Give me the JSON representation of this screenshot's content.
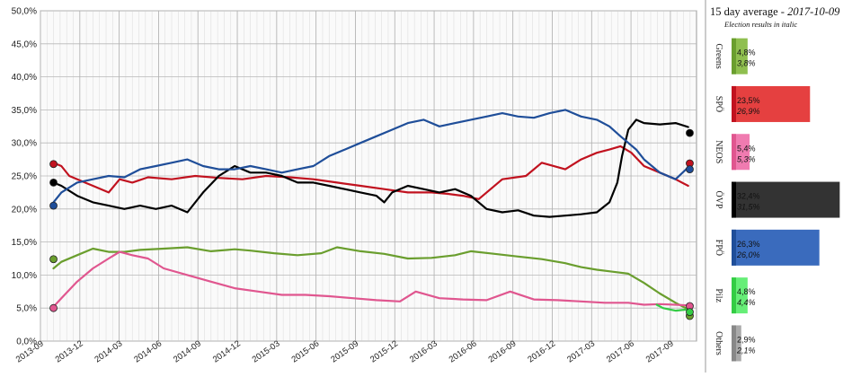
{
  "chart_data": {
    "type": "line",
    "title": "15 day average - 2017-10-09",
    "title_main": "15 day average - ",
    "title_date": "2017-10-09",
    "subtitle": "Election results in italic",
    "y_ticks": [
      "0,0%",
      "5,0%",
      "10,0%",
      "15,0%",
      "20,0%",
      "25,0%",
      "30,0%",
      "35,0%",
      "40,0%",
      "45,0%",
      "50,0%"
    ],
    "ylim": [
      0,
      50
    ],
    "x_ticks": [
      "2013-09",
      "2013-12",
      "2014-03",
      "2014-06",
      "2014-09",
      "2014-12",
      "2015-03",
      "2015-06",
      "2015-09",
      "2015-12",
      "2016-03",
      "2016-06",
      "2016-09",
      "2016-12",
      "2017-03",
      "2017-06",
      "2017-09"
    ],
    "x_tick_values": [
      2013.667,
      2013.917,
      2014.167,
      2014.417,
      2014.667,
      2014.917,
      2015.167,
      2015.417,
      2015.667,
      2015.917,
      2016.167,
      2016.417,
      2016.667,
      2016.917,
      2017.167,
      2017.417,
      2017.667
    ],
    "xlim": [
      2013.667,
      2017.833
    ],
    "grid": true,
    "series": [
      {
        "name": "Greens",
        "color": "#6a9e2e",
        "x": [
          2013.75,
          2013.8,
          2013.9,
          2014.0,
          2014.1,
          2014.2,
          2014.3,
          2014.45,
          2014.6,
          2014.75,
          2014.9,
          2015.0,
          2015.15,
          2015.3,
          2015.45,
          2015.55,
          2015.7,
          2015.85,
          2016.0,
          2016.15,
          2016.3,
          2016.4,
          2016.55,
          2016.7,
          2016.85,
          2017.0,
          2017.1,
          2017.2,
          2017.3,
          2017.4,
          2017.5,
          2017.6,
          2017.7,
          2017.78
        ],
        "y": [
          11.0,
          12.0,
          13.0,
          14.0,
          13.5,
          13.5,
          13.8,
          14.0,
          14.2,
          13.6,
          13.9,
          13.7,
          13.3,
          13.0,
          13.3,
          14.2,
          13.6,
          13.2,
          12.5,
          12.6,
          13.0,
          13.6,
          13.2,
          12.8,
          12.4,
          11.8,
          11.2,
          10.8,
          10.5,
          10.2,
          8.8,
          7.2,
          5.8,
          4.8
        ]
      },
      {
        "name": "SPÖ",
        "color": "#c1121f",
        "x": [
          2013.75,
          2013.8,
          2013.85,
          2013.95,
          2014.0,
          2014.1,
          2014.17,
          2014.25,
          2014.35,
          2014.5,
          2014.65,
          2014.8,
          2014.95,
          2015.1,
          2015.25,
          2015.4,
          2015.55,
          2015.7,
          2015.85,
          2016.0,
          2016.15,
          2016.25,
          2016.35,
          2016.45,
          2016.6,
          2016.75,
          2016.85,
          2017.0,
          2017.1,
          2017.2,
          2017.28,
          2017.35,
          2017.42,
          2017.5,
          2017.6,
          2017.7,
          2017.78
        ],
        "y": [
          27.0,
          26.5,
          25.0,
          24.0,
          23.5,
          22.5,
          24.5,
          24.0,
          24.8,
          24.5,
          25.0,
          24.7,
          24.5,
          25.0,
          24.8,
          24.5,
          24.0,
          23.5,
          23.0,
          22.5,
          22.5,
          22.3,
          22.0,
          21.5,
          24.5,
          25.0,
          27.0,
          26.0,
          27.5,
          28.5,
          29.0,
          29.5,
          28.5,
          26.5,
          25.5,
          24.5,
          23.5
        ]
      },
      {
        "name": "NEOS",
        "color": "#e0568f",
        "x": [
          2013.75,
          2013.8,
          2013.9,
          2014.0,
          2014.1,
          2014.17,
          2014.25,
          2014.35,
          2014.45,
          2014.6,
          2014.75,
          2014.9,
          2015.05,
          2015.2,
          2015.35,
          2015.5,
          2015.65,
          2015.8,
          2015.95,
          2016.05,
          2016.2,
          2016.35,
          2016.5,
          2016.65,
          2016.8,
          2016.95,
          2017.1,
          2017.25,
          2017.4,
          2017.5,
          2017.6,
          2017.7,
          2017.78
        ],
        "y": [
          5.2,
          6.5,
          9.0,
          11.0,
          12.5,
          13.5,
          13.0,
          12.5,
          11.0,
          10.0,
          9.0,
          8.0,
          7.5,
          7.0,
          7.0,
          6.8,
          6.5,
          6.2,
          6.0,
          7.5,
          6.5,
          6.3,
          6.2,
          7.5,
          6.3,
          6.2,
          6.0,
          5.8,
          5.8,
          5.5,
          5.6,
          5.5,
          5.4
        ]
      },
      {
        "name": "ÖVP",
        "color": "#000000",
        "x": [
          2013.75,
          2013.8,
          2013.9,
          2014.0,
          2014.1,
          2014.2,
          2014.3,
          2014.4,
          2014.5,
          2014.6,
          2014.7,
          2014.8,
          2014.9,
          2015.0,
          2015.1,
          2015.2,
          2015.3,
          2015.4,
          2015.5,
          2015.6,
          2015.7,
          2015.8,
          2015.85,
          2015.9,
          2016.0,
          2016.1,
          2016.2,
          2016.3,
          2016.4,
          2016.5,
          2016.6,
          2016.7,
          2016.8,
          2016.9,
          2017.0,
          2017.1,
          2017.2,
          2017.28,
          2017.33,
          2017.36,
          2017.4,
          2017.45,
          2017.5,
          2017.6,
          2017.7,
          2017.78
        ],
        "y": [
          24.0,
          23.5,
          22.0,
          21.0,
          20.5,
          20.0,
          20.5,
          20.0,
          20.5,
          19.5,
          22.5,
          25.0,
          26.5,
          25.5,
          25.5,
          25.0,
          24.0,
          24.0,
          23.5,
          23.0,
          22.5,
          22.0,
          21.0,
          22.5,
          23.5,
          23.0,
          22.5,
          23.0,
          22.0,
          20.0,
          19.5,
          19.8,
          19.0,
          18.8,
          19.0,
          19.2,
          19.5,
          21.0,
          24.0,
          28.0,
          32.0,
          33.5,
          33.0,
          32.8,
          33.0,
          32.4
        ]
      },
      {
        "name": "FPÖ",
        "color": "#1f4e99",
        "x": [
          2013.75,
          2013.8,
          2013.9,
          2014.0,
          2014.1,
          2014.2,
          2014.3,
          2014.4,
          2014.5,
          2014.6,
          2014.7,
          2014.8,
          2014.9,
          2015.0,
          2015.1,
          2015.2,
          2015.3,
          2015.4,
          2015.5,
          2015.6,
          2015.7,
          2015.8,
          2015.9,
          2016.0,
          2016.1,
          2016.2,
          2016.3,
          2016.4,
          2016.5,
          2016.6,
          2016.7,
          2016.8,
          2016.9,
          2017.0,
          2017.1,
          2017.2,
          2017.28,
          2017.35,
          2017.4,
          2017.45,
          2017.5,
          2017.6,
          2017.7,
          2017.78
        ],
        "y": [
          21.0,
          22.5,
          24.0,
          24.5,
          25.0,
          24.8,
          26.0,
          26.5,
          27.0,
          27.5,
          26.5,
          26.0,
          26.0,
          26.5,
          26.0,
          25.5,
          26.0,
          26.5,
          28.0,
          29.0,
          30.0,
          31.0,
          32.0,
          33.0,
          33.5,
          32.5,
          33.0,
          33.5,
          34.0,
          34.5,
          34.0,
          33.8,
          34.5,
          35.0,
          34.0,
          33.5,
          32.5,
          31.0,
          30.0,
          29.0,
          27.5,
          25.5,
          24.5,
          26.3
        ]
      },
      {
        "name": "Pilz",
        "color": "#33cc44",
        "x": [
          2017.58,
          2017.62,
          2017.66,
          2017.7,
          2017.74,
          2017.78
        ],
        "y": [
          5.5,
          5.0,
          4.8,
          4.6,
          4.7,
          4.8
        ]
      }
    ],
    "election_results": [
      {
        "name": "Greens",
        "value": 12.4,
        "color": "#6a9e2e",
        "x": 2013.75
      },
      {
        "name": "SPÖ",
        "value": 26.8,
        "color": "#c1121f",
        "x": 2013.75
      },
      {
        "name": "NEOS",
        "value": 5.0,
        "color": "#e0568f",
        "x": 2013.75
      },
      {
        "name": "ÖVP",
        "value": 24.0,
        "color": "#000000",
        "x": 2013.75
      },
      {
        "name": "FPÖ",
        "value": 20.5,
        "color": "#1f4e99",
        "x": 2013.75
      },
      {
        "name": "Greens",
        "value": 3.8,
        "color": "#6a9e2e",
        "x": 2017.79
      },
      {
        "name": "SPÖ",
        "value": 26.9,
        "color": "#c1121f",
        "x": 2017.79
      },
      {
        "name": "NEOS",
        "value": 5.3,
        "color": "#e0568f",
        "x": 2017.79
      },
      {
        "name": "ÖVP",
        "value": 31.5,
        "color": "#000000",
        "x": 2017.79
      },
      {
        "name": "FPÖ",
        "value": 26.0,
        "color": "#1f4e99",
        "x": 2017.79
      },
      {
        "name": "Pilz",
        "value": 4.4,
        "color": "#33cc44",
        "x": 2017.79
      }
    ],
    "bars": [
      {
        "label": "Greens",
        "value": 4.8,
        "value_text": "4,8%",
        "result_text": "3,8%",
        "color": "#6a9e2e",
        "bar_light": "#8fbf4f"
      },
      {
        "label": "SPÖ",
        "value": 23.5,
        "value_text": "23,5%",
        "result_text": "26,9%",
        "color": "#c1121f",
        "bar_light": "#e54040"
      },
      {
        "label": "NEOS",
        "value": 5.4,
        "value_text": "5,4%",
        "result_text": "5,3%",
        "color": "#e0568f",
        "bar_light": "#f07bb0"
      },
      {
        "label": "ÖVP",
        "value": 32.4,
        "value_text": "32,4%",
        "result_text": "31,5%",
        "color": "#000000",
        "bar_light": "#333333"
      },
      {
        "label": "FPÖ",
        "value": 26.3,
        "value_text": "26,3%",
        "result_text": "26,0%",
        "color": "#1f4e99",
        "bar_light": "#3a6bbd"
      },
      {
        "label": "Pilz",
        "value": 4.8,
        "value_text": "4,8%",
        "result_text": "4,4%",
        "color": "#33cc44",
        "bar_light": "#66ee77"
      },
      {
        "label": "Others",
        "value": 2.9,
        "value_text": "2,9%",
        "result_text": "2,1%",
        "color": "#888888",
        "bar_light": "#aaaaaa"
      }
    ],
    "bars_max": 35
  }
}
